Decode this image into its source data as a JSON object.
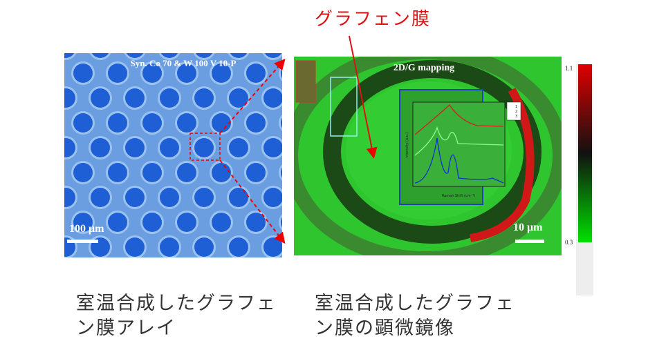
{
  "annotation": {
    "label": "グラフェン膜"
  },
  "left_image": {
    "header": "Syn. Co 70 & W 100 V  10-P",
    "scale_bar": "100 μm",
    "caption": [
      "室温合成したグラフェ",
      "ン膜アレイ"
    ]
  },
  "right_image": {
    "title": "2D/G mapping",
    "scale_bar": "10 μm",
    "inset": {
      "x_label": "Raman Shift (cm⁻¹)",
      "y_label": "Intensity (a.u.)",
      "legend": [
        "1",
        "2",
        "3"
      ]
    },
    "colorbar": {
      "max": "1.1",
      "min": "0.3"
    },
    "caption": [
      "室温合成したグラフェ",
      "ン膜の顕微鏡像"
    ]
  }
}
